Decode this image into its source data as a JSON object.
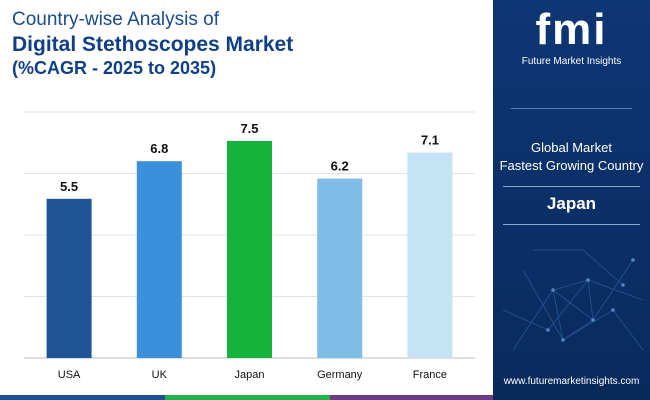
{
  "header": {
    "line1": "Country-wise Analysis of",
    "line2": "Digital Stethoscopes Market",
    "line3": "(%CAGR - 2025 to 2035)"
  },
  "panel": {
    "logo_letters": "fmi",
    "logo_tagline": "Future Market Insights",
    "subtitle_line1": "Global Market",
    "subtitle_line2": "Fastest Growing Country",
    "country": "Japan",
    "url": "www.futuremarketinsights.com"
  },
  "colors": {
    "usa": "#1f5496",
    "uk": "#3b90dc",
    "japan": "#16b33c",
    "germany": "#7fbde6",
    "france": "#c6e3f5",
    "strip_blue": "#1e4f93",
    "strip_green": "#27b14c",
    "strip_purple": "#6c3a86"
  },
  "chart_data": {
    "type": "bar",
    "title": "Country-wise Analysis of Digital Stethoscopes Market (%CAGR - 2025 to 2035)",
    "xlabel": "",
    "ylabel": "",
    "ylim": [
      0,
      8.5
    ],
    "grid": true,
    "categories": [
      "USA",
      "UK",
      "Japan",
      "Germany",
      "France"
    ],
    "values": [
      5.5,
      6.8,
      7.5,
      6.2,
      7.1
    ],
    "value_labels": [
      "5.5",
      "6.8",
      "7.5",
      "6.2",
      "7.1"
    ]
  }
}
